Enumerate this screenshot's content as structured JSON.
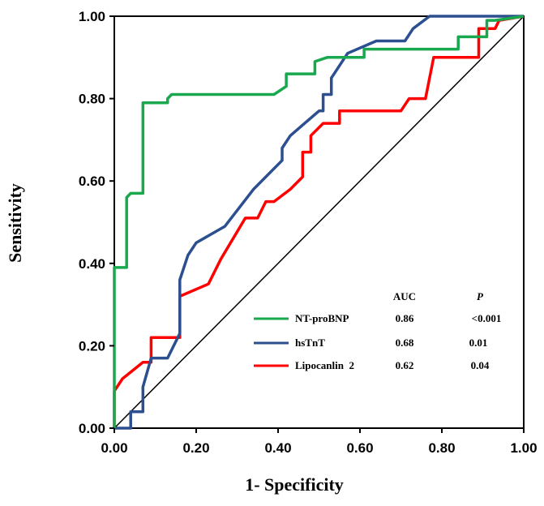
{
  "chart_data": {
    "type": "line",
    "xlabel": "1- Specificity",
    "ylabel": "Sensitivity",
    "xlim": [
      0,
      1
    ],
    "ylim": [
      0,
      1
    ],
    "xticks": [
      "0.00",
      "0.20",
      "0.40",
      "0.60",
      "0.80",
      "1.00"
    ],
    "yticks": [
      "0.00",
      "0.20",
      "0.40",
      "0.60",
      "0.80",
      "1.00"
    ],
    "grid": false,
    "legend_position": "bottom-right",
    "legend_headers": {
      "auc": "AUC",
      "p": "P"
    },
    "reference_line": {
      "x": [
        0,
        1
      ],
      "y": [
        0,
        1
      ],
      "color": "#000000"
    },
    "series": [
      {
        "name": "NT-proBNP",
        "auc": "0.86",
        "p": "<0.001",
        "color": "#1aa84f",
        "x": [
          0,
          0,
          0.01,
          0.03,
          0.03,
          0.04,
          0.07,
          0.07,
          0.13,
          0.13,
          0.14,
          0.39,
          0.42,
          0.42,
          0.49,
          0.49,
          0.52,
          0.61,
          0.61,
          0.84,
          0.84,
          0.91,
          0.91,
          0.93,
          1.0
        ],
        "y": [
          0,
          0.39,
          0.39,
          0.39,
          0.56,
          0.57,
          0.57,
          0.79,
          0.79,
          0.8,
          0.81,
          0.81,
          0.83,
          0.86,
          0.86,
          0.89,
          0.9,
          0.9,
          0.92,
          0.92,
          0.95,
          0.95,
          0.99,
          0.99,
          1.0
        ]
      },
      {
        "name": "hsTnT",
        "auc": "0.68",
        "p": "0.01",
        "color": "#2b4f8f",
        "x": [
          0,
          0.04,
          0.04,
          0.07,
          0.07,
          0.09,
          0.13,
          0.16,
          0.16,
          0.18,
          0.2,
          0.27,
          0.34,
          0.41,
          0.41,
          0.43,
          0.5,
          0.51,
          0.51,
          0.53,
          0.53,
          0.57,
          0.64,
          0.71,
          0.73,
          0.77,
          1.0
        ],
        "y": [
          0,
          0,
          0.04,
          0.04,
          0.1,
          0.17,
          0.17,
          0.23,
          0.36,
          0.42,
          0.45,
          0.49,
          0.58,
          0.65,
          0.68,
          0.71,
          0.77,
          0.77,
          0.81,
          0.81,
          0.85,
          0.91,
          0.94,
          0.94,
          0.97,
          1.0,
          1.0
        ]
      },
      {
        "name": "Lipocanlin  2",
        "auc": "0.62",
        "p": "0.04",
        "color": "#ff0000",
        "x": [
          0,
          0,
          0.02,
          0.07,
          0.09,
          0.09,
          0.16,
          0.16,
          0.23,
          0.26,
          0.32,
          0.35,
          0.37,
          0.39,
          0.43,
          0.46,
          0.46,
          0.48,
          0.48,
          0.51,
          0.55,
          0.55,
          0.7,
          0.72,
          0.76,
          0.78,
          0.89,
          0.89,
          0.91,
          0.93,
          0.94,
          1.0
        ],
        "y": [
          0,
          0.09,
          0.12,
          0.16,
          0.16,
          0.22,
          0.22,
          0.32,
          0.35,
          0.41,
          0.51,
          0.51,
          0.55,
          0.55,
          0.58,
          0.61,
          0.67,
          0.67,
          0.71,
          0.74,
          0.74,
          0.77,
          0.77,
          0.8,
          0.8,
          0.9,
          0.9,
          0.97,
          0.97,
          0.97,
          0.99,
          1.0
        ]
      }
    ]
  }
}
